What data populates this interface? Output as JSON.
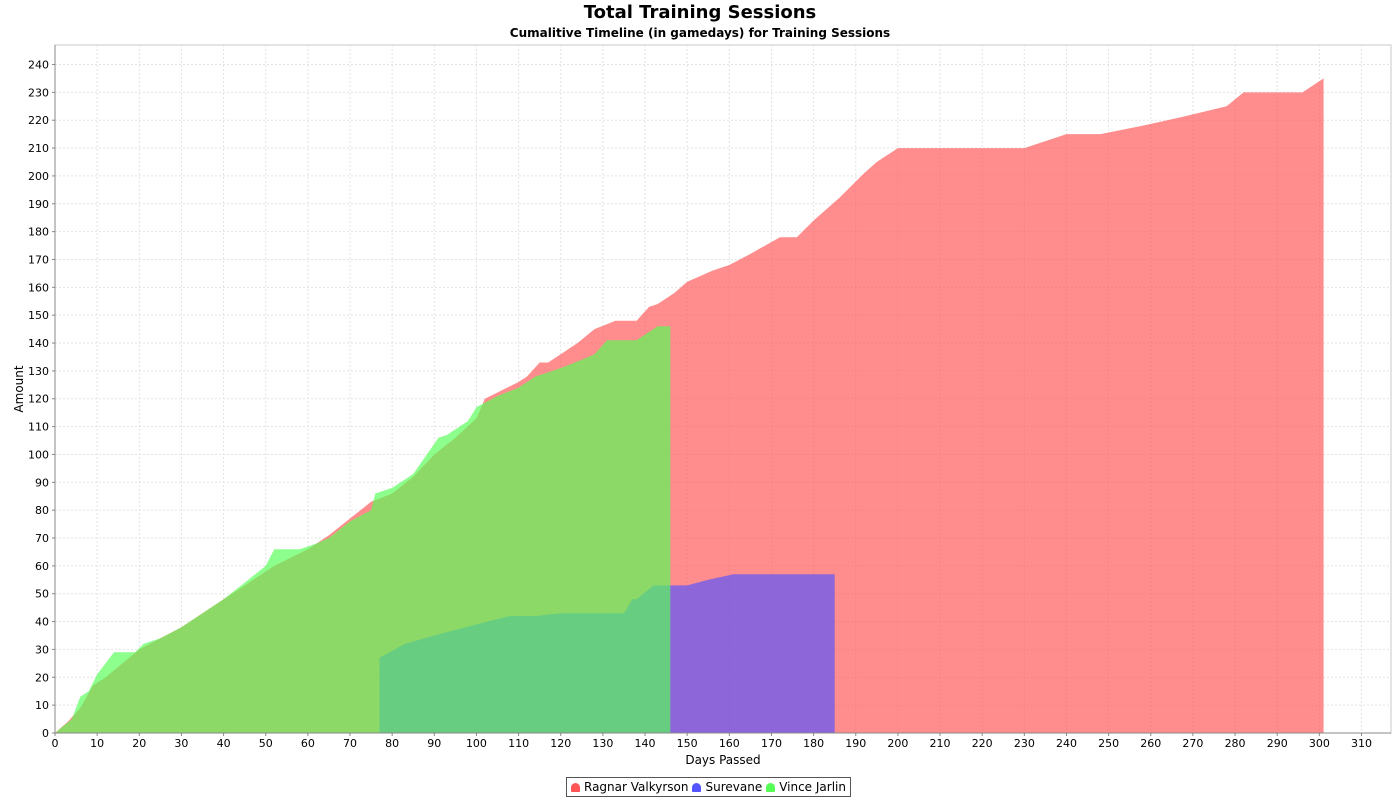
{
  "title": "Total Training Sessions",
  "subtitle": "Cumalitive Timeline (in gamedays) for Training Sessions",
  "chart_data": {
    "type": "area",
    "title": "Total Training Sessions",
    "subtitle": "Cumalitive Timeline (in gamedays) for Training Sessions",
    "xlabel": "Days Passed",
    "ylabel": "Amount",
    "xlim": [
      0,
      317
    ],
    "ylim": [
      0,
      247
    ],
    "x_ticks": [
      0,
      10,
      20,
      30,
      40,
      50,
      60,
      70,
      80,
      90,
      100,
      110,
      120,
      130,
      140,
      150,
      160,
      170,
      180,
      190,
      200,
      210,
      220,
      230,
      240,
      250,
      260,
      270,
      280,
      290,
      300,
      310
    ],
    "y_ticks": [
      0,
      10,
      20,
      30,
      40,
      50,
      60,
      70,
      80,
      90,
      100,
      110,
      120,
      130,
      140,
      150,
      160,
      170,
      180,
      190,
      200,
      210,
      220,
      230,
      240
    ],
    "grid": true,
    "legend_position": "bottom",
    "series": [
      {
        "name": "Ragnar Valkyrson",
        "color": "#ff5555",
        "points": [
          [
            0,
            0
          ],
          [
            3,
            4
          ],
          [
            6,
            9
          ],
          [
            9,
            17
          ],
          [
            12,
            20
          ],
          [
            16,
            25
          ],
          [
            20,
            30
          ],
          [
            25,
            34
          ],
          [
            30,
            38
          ],
          [
            35,
            43
          ],
          [
            40,
            48
          ],
          [
            44,
            52
          ],
          [
            48,
            56
          ],
          [
            52,
            60
          ],
          [
            56,
            63
          ],
          [
            60,
            66
          ],
          [
            65,
            71
          ],
          [
            70,
            77
          ],
          [
            75,
            83
          ],
          [
            80,
            86
          ],
          [
            85,
            92
          ],
          [
            90,
            100
          ],
          [
            95,
            106
          ],
          [
            100,
            113
          ],
          [
            102,
            120
          ],
          [
            106,
            123
          ],
          [
            110,
            126
          ],
          [
            112,
            128
          ],
          [
            115,
            133
          ],
          [
            117,
            133
          ],
          [
            120,
            136
          ],
          [
            124,
            140
          ],
          [
            128,
            145
          ],
          [
            133,
            148
          ],
          [
            138,
            148
          ],
          [
            141,
            153
          ],
          [
            143,
            154
          ],
          [
            147,
            158
          ],
          [
            150,
            162
          ],
          [
            153,
            164
          ],
          [
            156,
            166
          ],
          [
            160,
            168
          ],
          [
            165,
            172
          ],
          [
            172,
            178
          ],
          [
            176,
            178
          ],
          [
            180,
            184
          ],
          [
            186,
            192
          ],
          [
            192,
            201
          ],
          [
            195,
            205
          ],
          [
            200,
            210
          ],
          [
            210,
            210
          ],
          [
            220,
            210
          ],
          [
            230,
            210
          ],
          [
            240,
            215
          ],
          [
            248,
            215
          ],
          [
            258,
            218
          ],
          [
            267,
            221
          ],
          [
            278,
            225
          ],
          [
            282,
            230
          ],
          [
            296,
            230
          ],
          [
            301,
            235
          ]
        ]
      },
      {
        "name": "Surevane",
        "color": "#5555ff",
        "points": [
          [
            77,
            27
          ],
          [
            83,
            32
          ],
          [
            90,
            35
          ],
          [
            100,
            39
          ],
          [
            108,
            42
          ],
          [
            114,
            42
          ],
          [
            120,
            43
          ],
          [
            135,
            43
          ],
          [
            137,
            48
          ],
          [
            138,
            48
          ],
          [
            142,
            53
          ],
          [
            150,
            53
          ],
          [
            155,
            55
          ],
          [
            161,
            57
          ],
          [
            185,
            57
          ]
        ]
      },
      {
        "name": "Vince Jarlin",
        "color": "#55ff55",
        "points": [
          [
            0,
            0
          ],
          [
            4,
            5
          ],
          [
            6,
            13
          ],
          [
            8,
            15
          ],
          [
            10,
            21
          ],
          [
            14,
            29
          ],
          [
            19,
            29
          ],
          [
            21,
            32
          ],
          [
            25,
            34
          ],
          [
            30,
            38
          ],
          [
            35,
            43
          ],
          [
            40,
            48
          ],
          [
            45,
            54
          ],
          [
            50,
            60
          ],
          [
            52,
            66
          ],
          [
            58,
            66
          ],
          [
            62,
            68
          ],
          [
            65,
            70
          ],
          [
            70,
            76
          ],
          [
            75,
            80
          ],
          [
            76,
            86
          ],
          [
            80,
            88
          ],
          [
            85,
            93
          ],
          [
            91,
            106
          ],
          [
            93,
            107
          ],
          [
            98,
            112
          ],
          [
            100,
            117
          ],
          [
            105,
            121
          ],
          [
            110,
            124
          ],
          [
            114,
            128
          ],
          [
            120,
            131
          ],
          [
            125,
            134
          ],
          [
            128,
            136
          ],
          [
            131,
            141
          ],
          [
            138,
            141
          ],
          [
            141,
            144
          ],
          [
            143,
            146
          ],
          [
            146,
            146
          ]
        ]
      }
    ]
  }
}
